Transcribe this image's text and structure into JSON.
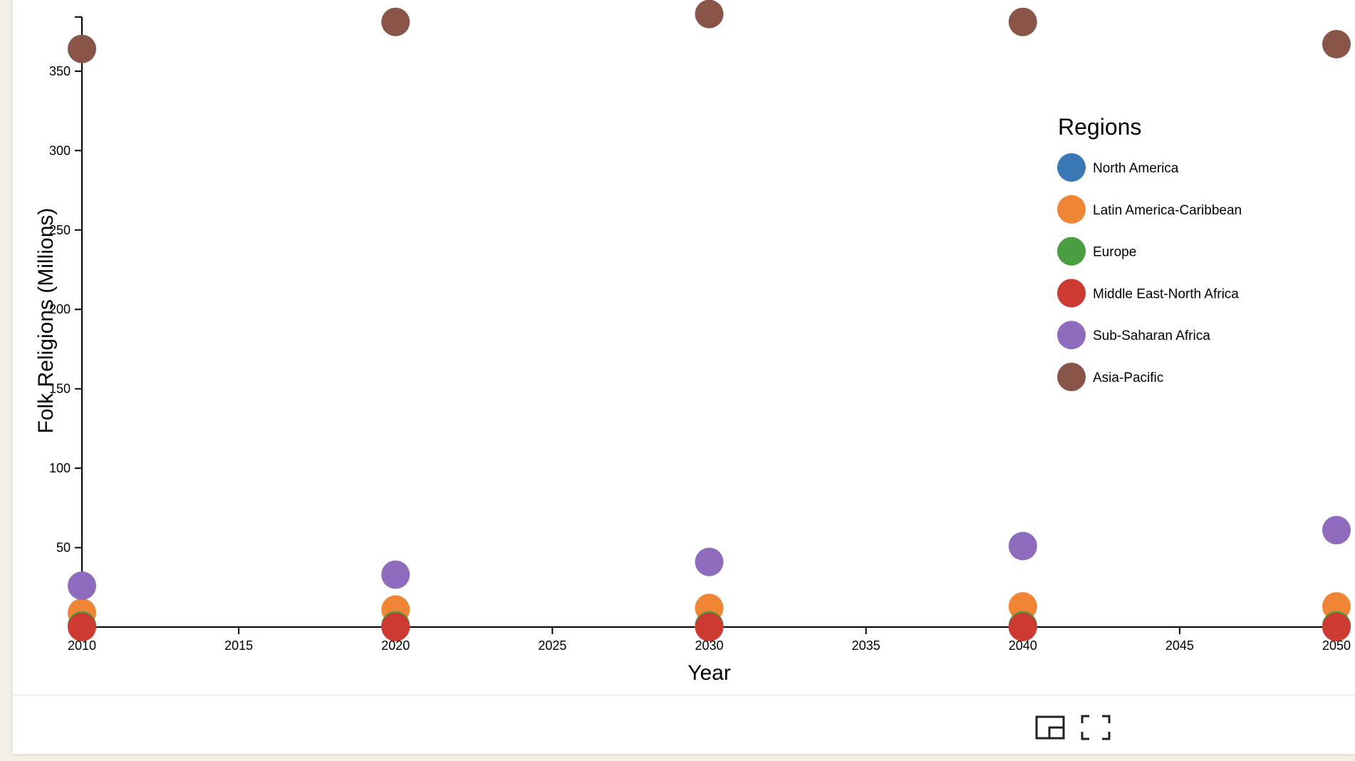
{
  "chart_data": {
    "type": "scatter",
    "xlabel": "Year",
    "ylabel": "Folk Religions (Millions)",
    "xlim": [
      2010,
      2050
    ],
    "ylim": [
      0,
      385
    ],
    "x_ticks": [
      2010,
      2015,
      2020,
      2025,
      2030,
      2035,
      2040,
      2045,
      2050
    ],
    "y_ticks": [
      50,
      100,
      150,
      200,
      250,
      300,
      350
    ],
    "legend": {
      "title": "Regions",
      "position": "top-right"
    },
    "x": [
      2010,
      2020,
      2030,
      2040,
      2050
    ],
    "series": [
      {
        "name": "North America",
        "color": "#3a78b5",
        "values": [
          1,
          1,
          1,
          1,
          1
        ]
      },
      {
        "name": "Latin America-Caribbean",
        "color": "#ef8535",
        "values": [
          9,
          11,
          12,
          13,
          13
        ]
      },
      {
        "name": "Europe",
        "color": "#4a9e3f",
        "values": [
          1,
          1,
          1,
          1,
          1
        ]
      },
      {
        "name": "Middle East-North Africa",
        "color": "#cc3a32",
        "values": [
          0,
          0,
          0,
          0,
          0
        ]
      },
      {
        "name": "Sub-Saharan Africa",
        "color": "#8f6bbd",
        "values": [
          26,
          33,
          41,
          51,
          61
        ]
      },
      {
        "name": "Asia-Pacific",
        "color": "#8a5549",
        "values": [
          364,
          381,
          386,
          381,
          367
        ]
      }
    ]
  },
  "controls": {
    "pip_icon": "picture-in-picture-icon",
    "fullscreen_icon": "fullscreen-icon"
  }
}
